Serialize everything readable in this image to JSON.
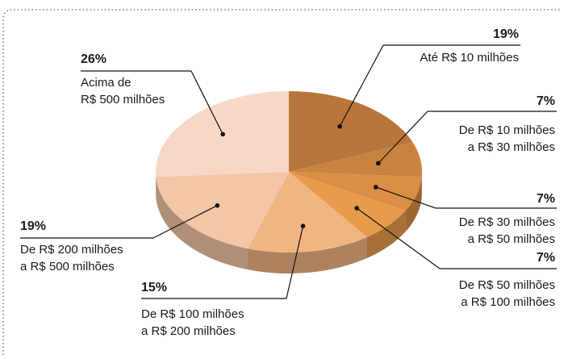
{
  "chart_data": {
    "type": "pie",
    "categories": [
      [
        "Até R$ 10 milhões"
      ],
      [
        "De R$ 10 milhões",
        "a R$ 30 milhões"
      ],
      [
        "De R$ 30 milhões",
        "a R$ 50 milhões"
      ],
      [
        "De R$ 50 milhões",
        "a R$ 100 milhões"
      ],
      [
        "De R$ 100 milhões",
        "a R$ 200 milhões"
      ],
      [
        "De R$ 200 milhões",
        "a R$ 500 milhões"
      ],
      [
        "Acima de",
        "R$ 500 milhões"
      ]
    ],
    "values": [
      19,
      7,
      7,
      7,
      15,
      19,
      26
    ],
    "value_labels": [
      "19%",
      "7%",
      "7%",
      "7%",
      "15%",
      "19%",
      "26%"
    ],
    "colors": [
      "#b9753b",
      "#c98341",
      "#d98f45",
      "#e99b4c",
      "#f1b582",
      "#f3c6a7",
      "#f7d8c6"
    ]
  }
}
